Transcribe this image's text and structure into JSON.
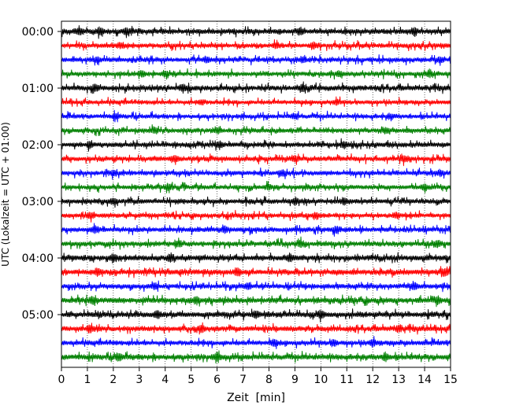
{
  "chart_data": {
    "type": "line",
    "xlabel": "Zeit  [min]",
    "ylabel": "UTC (Lokalzeit = UTC + 01:00)",
    "xlim": [
      0,
      15
    ],
    "x_ticks": [
      "0",
      "1",
      "2",
      "3",
      "4",
      "5",
      "6",
      "7",
      "8",
      "9",
      "10",
      "11",
      "12",
      "13",
      "14",
      "15"
    ],
    "y_tick_labels": [
      "00:00",
      "01:00",
      "02:00",
      "03:00",
      "04:00",
      "05:00"
    ],
    "grid": "vertical-dotted",
    "trace_colors": [
      "#000000",
      "#ff0000",
      "#0000ff",
      "#008000"
    ],
    "traces": [
      {
        "time": "00:00",
        "color": "#000000",
        "amplitude": 0.55,
        "events": [
          0.7,
          1.5,
          2.5,
          9.2,
          13.6
        ]
      },
      {
        "time": "00:15",
        "color": "#ff0000",
        "amplitude": 0.45,
        "events": [
          2.3,
          8.3,
          9.7
        ]
      },
      {
        "time": "00:30",
        "color": "#0000ff",
        "amplitude": 0.45,
        "events": [
          1.4,
          5.6,
          9.3,
          14.6
        ]
      },
      {
        "time": "00:45",
        "color": "#008000",
        "amplitude": 0.45,
        "events": [
          3.1,
          4.0,
          10.7,
          14.2
        ]
      },
      {
        "time": "01:00",
        "color": "#000000",
        "amplitude": 0.55,
        "events": [
          1.3,
          4.7,
          9.3
        ]
      },
      {
        "time": "01:15",
        "color": "#ff0000",
        "amplitude": 0.4,
        "events": [
          5.4,
          10.6
        ]
      },
      {
        "time": "01:30",
        "color": "#0000ff",
        "amplitude": 0.4,
        "events": [
          2.1,
          9.0,
          12.7
        ]
      },
      {
        "time": "01:45",
        "color": "#008000",
        "amplitude": 0.45,
        "events": [
          3.6,
          6.0,
          12.5
        ]
      },
      {
        "time": "02:00",
        "color": "#000000",
        "amplitude": 0.5,
        "events": [
          1.1,
          6.1,
          10.9
        ]
      },
      {
        "time": "02:15",
        "color": "#ff0000",
        "amplitude": 0.5,
        "events": [
          4.4,
          9.0,
          13.2
        ]
      },
      {
        "time": "02:30",
        "color": "#0000ff",
        "amplitude": 0.45,
        "events": [
          2.0,
          8.5,
          14.6
        ]
      },
      {
        "time": "02:45",
        "color": "#008000",
        "amplitude": 0.45,
        "events": [
          4.1,
          8.0,
          14.0
        ]
      },
      {
        "time": "03:00",
        "color": "#000000",
        "amplitude": 0.5,
        "events": [
          2.0,
          9.0,
          10.9
        ]
      },
      {
        "time": "03:15",
        "color": "#ff0000",
        "amplitude": 0.45,
        "events": [
          1.1,
          9.8,
          12.9
        ]
      },
      {
        "time": "03:30",
        "color": "#0000ff",
        "amplitude": 0.5,
        "events": [
          1.3,
          6.3,
          10.6
        ]
      },
      {
        "time": "03:45",
        "color": "#008000",
        "amplitude": 0.5,
        "events": [
          4.5,
          9.2,
          14.5
        ]
      },
      {
        "time": "04:00",
        "color": "#000000",
        "amplitude": 0.6,
        "events": [
          2.0,
          4.2,
          8.8
        ]
      },
      {
        "time": "04:15",
        "color": "#ff0000",
        "amplitude": 0.6,
        "events": [
          1.4,
          6.8,
          14.8
        ]
      },
      {
        "time": "04:30",
        "color": "#0000ff",
        "amplitude": 0.5,
        "events": [
          3.6,
          7.2,
          13.6
        ]
      },
      {
        "time": "04:45",
        "color": "#008000",
        "amplitude": 0.6,
        "events": [
          1.2,
          5.2,
          14.5
        ]
      },
      {
        "time": "05:00",
        "color": "#000000",
        "amplitude": 0.6,
        "events": [
          3.7,
          7.5,
          10.0
        ]
      },
      {
        "time": "05:15",
        "color": "#ff0000",
        "amplitude": 0.55,
        "events": [
          1.1,
          5.4,
          13.0
        ]
      },
      {
        "time": "05:30",
        "color": "#0000ff",
        "amplitude": 0.5,
        "events": [
          8.2,
          10.5,
          12.0
        ]
      },
      {
        "time": "05:45",
        "color": "#008000",
        "amplitude": 0.6,
        "events": [
          2.2,
          6.0,
          12.5
        ]
      }
    ]
  }
}
